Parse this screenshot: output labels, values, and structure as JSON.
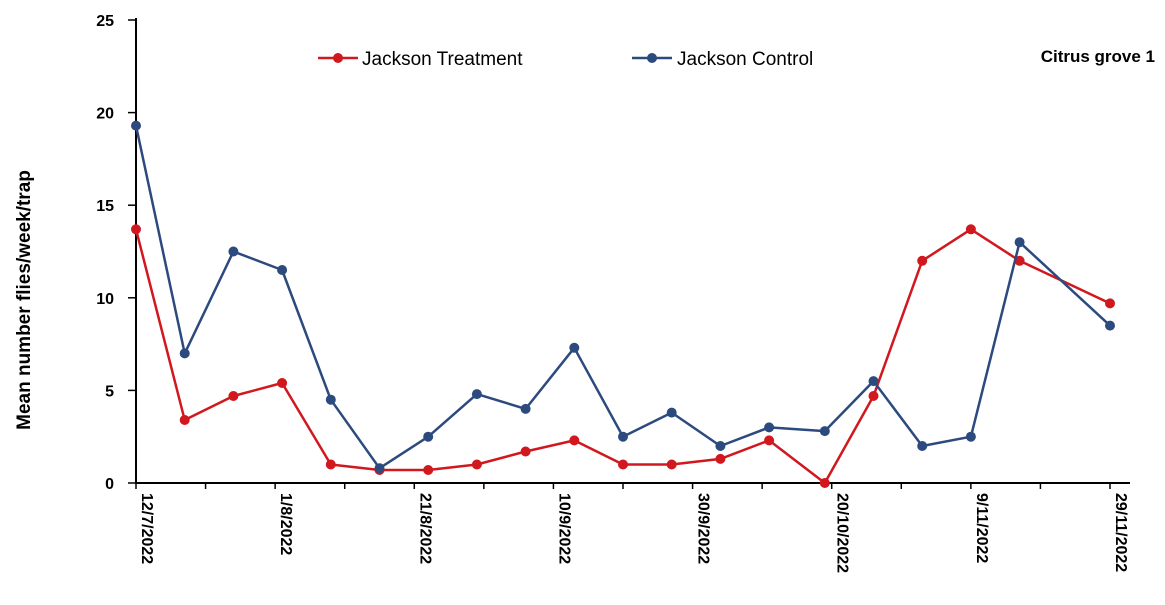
{
  "chart_data": {
    "type": "line",
    "title": "Citrus grove 1",
    "xlabel": "",
    "ylabel": "Mean number flies/week/trap",
    "ylim": [
      0,
      25
    ],
    "yticks": [
      "0",
      "5",
      "10",
      "15",
      "20",
      "25"
    ],
    "xtick_labels": [
      "12/7/2022",
      "1/8/2022",
      "21/8/2022",
      "10/9/2022",
      "30/9/2022",
      "20/10/2022",
      "9/11/2022",
      "29/11/2022"
    ],
    "legend_position": "top",
    "grid": false,
    "series": [
      {
        "name": "Jackson Treatment",
        "color": "#d0181e",
        "points": [
          {
            "x": "12/7/2022",
            "y": 13.7
          },
          {
            "x": "19/7/2022",
            "y": 3.4
          },
          {
            "x": "26/7/2022",
            "y": 4.7
          },
          {
            "x": "2/8/2022",
            "y": 5.4
          },
          {
            "x": "9/8/2022",
            "y": 1.0
          },
          {
            "x": "16/8/2022",
            "y": 0.7
          },
          {
            "x": "23/8/2022",
            "y": 0.7
          },
          {
            "x": "30/8/2022",
            "y": 1.0
          },
          {
            "x": "6/9/2022",
            "y": 1.7
          },
          {
            "x": "13/9/2022",
            "y": 2.3
          },
          {
            "x": "20/9/2022",
            "y": 1.0
          },
          {
            "x": "27/9/2022",
            "y": 1.0
          },
          {
            "x": "4/10/2022",
            "y": 1.3
          },
          {
            "x": "11/10/2022",
            "y": 2.3
          },
          {
            "x": "19/10/2022",
            "y": 0.0
          },
          {
            "x": "26/10/2022",
            "y": 4.7
          },
          {
            "x": "2/11/2022",
            "y": 12.0
          },
          {
            "x": "9/11/2022",
            "y": 13.7
          },
          {
            "x": "16/11/2022",
            "y": 12.0
          },
          {
            "x": "29/11/2022",
            "y": 9.7
          }
        ]
      },
      {
        "name": "Jackson Control",
        "color": "#2c4a7e",
        "points": [
          {
            "x": "12/7/2022",
            "y": 19.3
          },
          {
            "x": "19/7/2022",
            "y": 7.0
          },
          {
            "x": "26/7/2022",
            "y": 12.5
          },
          {
            "x": "2/8/2022",
            "y": 11.5
          },
          {
            "x": "9/8/2022",
            "y": 4.5
          },
          {
            "x": "16/8/2022",
            "y": 0.8
          },
          {
            "x": "23/8/2022",
            "y": 2.5
          },
          {
            "x": "30/8/2022",
            "y": 4.8
          },
          {
            "x": "6/9/2022",
            "y": 4.0
          },
          {
            "x": "13/9/2022",
            "y": 7.3
          },
          {
            "x": "20/9/2022",
            "y": 2.5
          },
          {
            "x": "27/9/2022",
            "y": 3.8
          },
          {
            "x": "4/10/2022",
            "y": 2.0
          },
          {
            "x": "11/10/2022",
            "y": 3.0
          },
          {
            "x": "19/10/2022",
            "y": 2.8
          },
          {
            "x": "26/10/2022",
            "y": 5.5
          },
          {
            "x": "2/11/2022",
            "y": 2.0
          },
          {
            "x": "9/11/2022",
            "y": 2.5
          },
          {
            "x": "16/11/2022",
            "y": 13.0
          },
          {
            "x": "29/11/2022",
            "y": 8.5
          }
        ]
      }
    ]
  }
}
